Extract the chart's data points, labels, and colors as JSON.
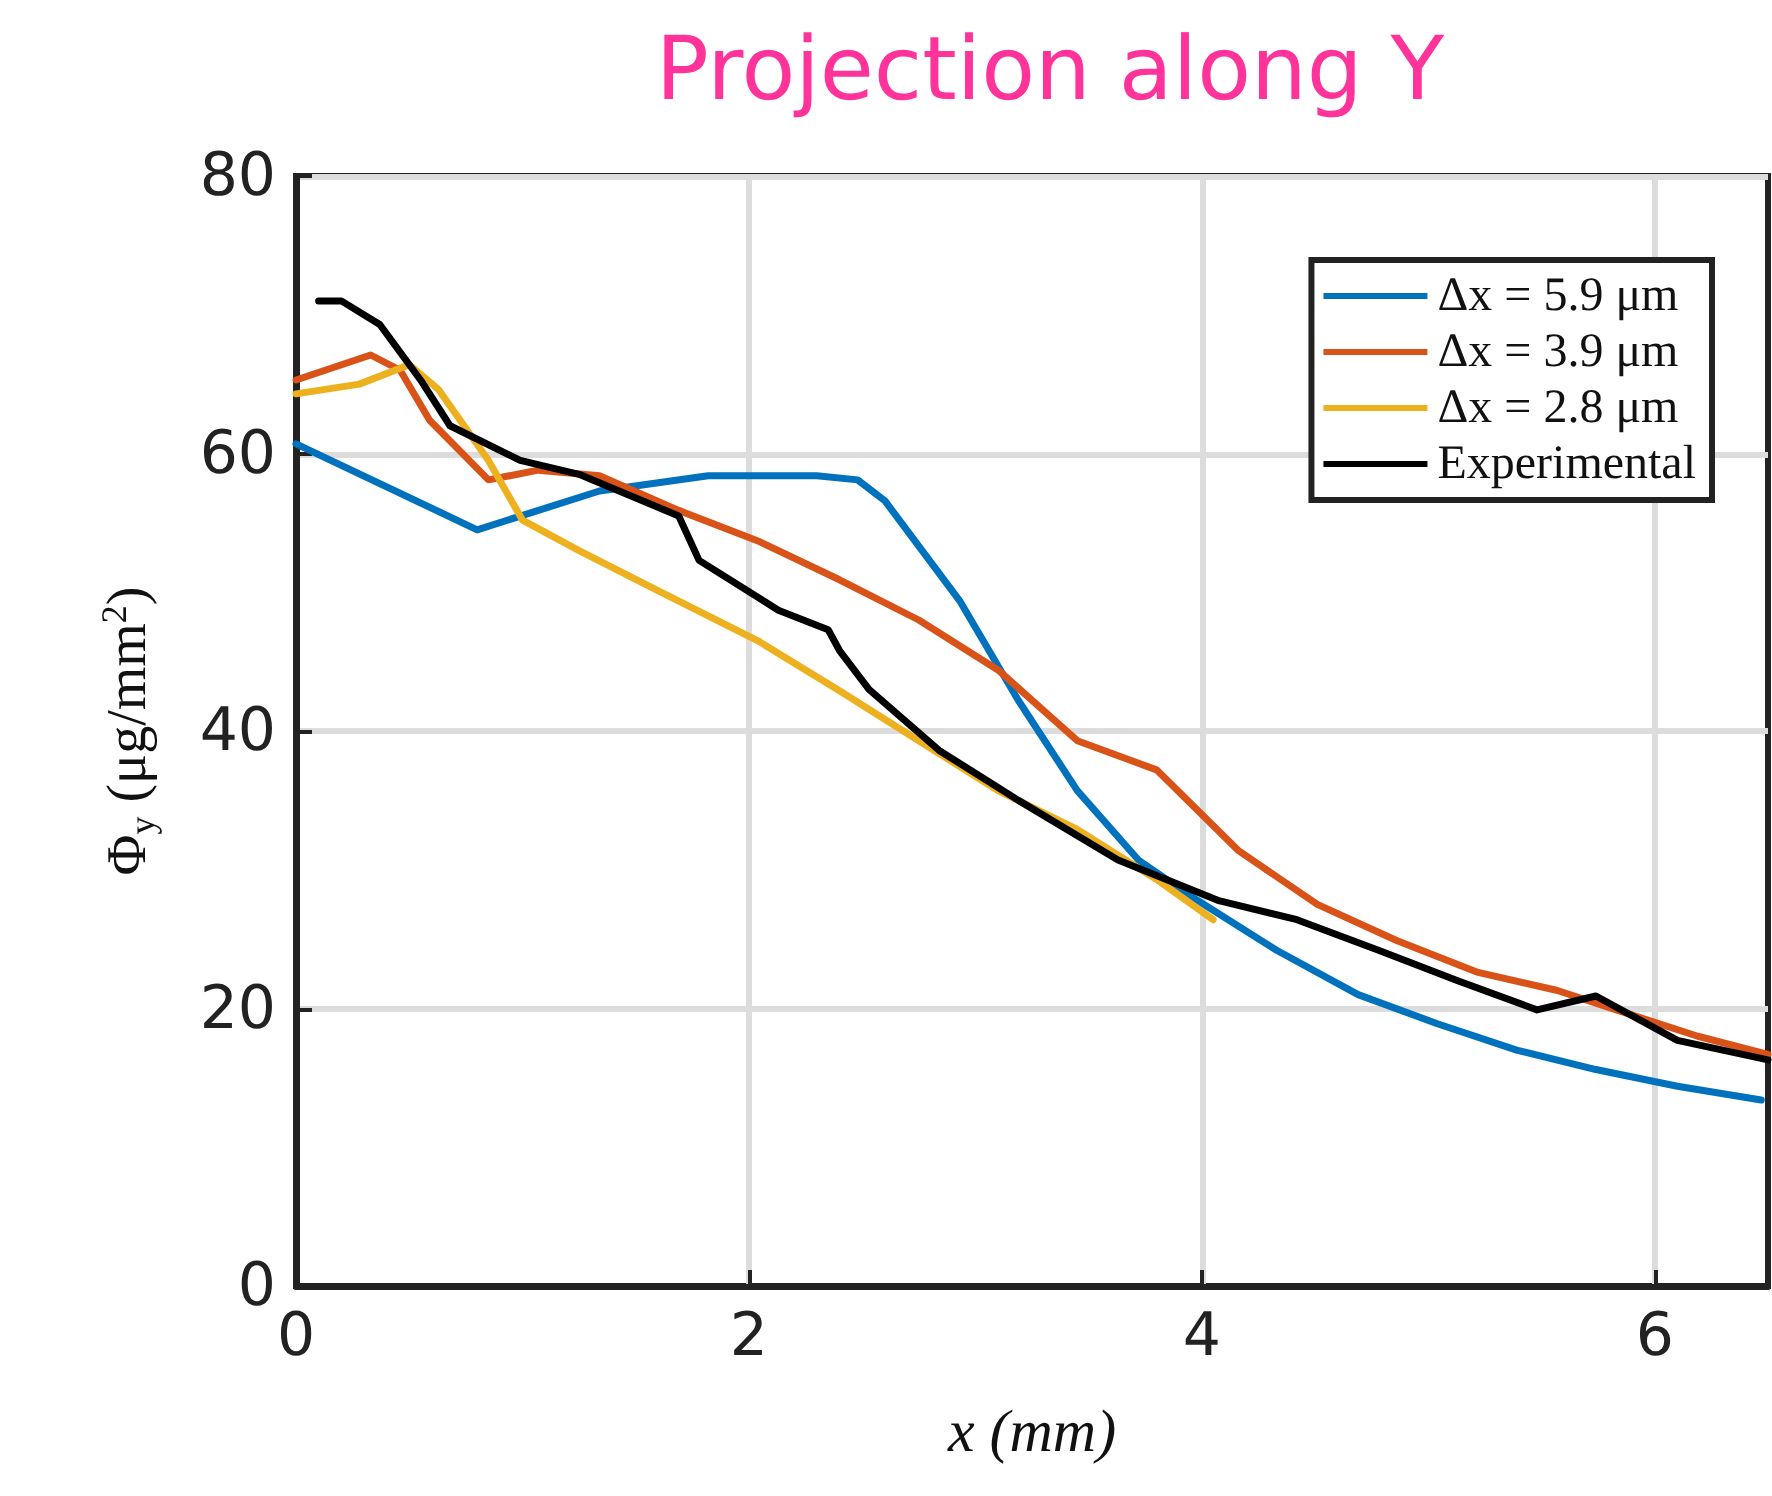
{
  "chart_data": {
    "type": "line",
    "title": "Projection along Y",
    "xlabel": "x (mm)",
    "ylabel": "Φ$_{y}$ (μg/mm$^{2}$)",
    "xlim": [
      0,
      6.5
    ],
    "xticks": [
      0,
      2,
      4,
      6
    ],
    "ylim": [
      0,
      80
    ],
    "yticks": [
      0,
      20,
      40,
      60,
      80
    ],
    "grid": true,
    "legend": "top right",
    "marker": "none",
    "line_style": "solid",
    "series": [
      {
        "name": "Δx = 5.9 μm",
        "color": "#0072bd",
        "x": [
          0,
          0.8,
          1.34,
          1.82,
          2.3,
          2.48,
          2.6,
          2.93,
          3.19,
          3.45,
          3.72,
          3.98,
          4.33,
          4.69,
          5.04,
          5.39,
          5.74,
          6.1,
          6.47
        ],
        "values": [
          60.7,
          54.5,
          57.3,
          58.4,
          58.4,
          58.1,
          56.6,
          49.4,
          42.2,
          35.7,
          30.7,
          27.8,
          24.2,
          21.0,
          18.9,
          17.0,
          15.6,
          14.4,
          13.4
        ]
      },
      {
        "name": "Δx = 3.9 μm",
        "color": "#d95319",
        "x": [
          0,
          0.33,
          0.46,
          0.59,
          0.85,
          1.07,
          1.34,
          1.69,
          2.04,
          2.4,
          2.75,
          3.1,
          3.45,
          3.8,
          4.16,
          4.51,
          4.86,
          5.22,
          5.57,
          5.83,
          6.19,
          6.5
        ],
        "values": [
          65.3,
          67.1,
          66,
          62.4,
          58.1,
          58.8,
          58.4,
          55.9,
          53.7,
          50.9,
          48,
          44.4,
          39.3,
          37.2,
          31.4,
          27.5,
          24.9,
          22.6,
          21.3,
          19.9,
          18,
          16.7
        ]
      },
      {
        "name": "Δx = 2.8 μm",
        "color": "#edb120",
        "x": [
          0,
          0.28,
          0.5,
          0.63,
          0.85,
          1.0,
          1.25,
          1.6,
          2.04,
          2.4,
          2.75,
          3.1,
          3.45,
          3.8,
          4.05
        ],
        "values": [
          64.3,
          65,
          66.4,
          64.6,
          59.5,
          55.2,
          53,
          50.1,
          46.5,
          42.9,
          39.3,
          35.7,
          32.9,
          29.3,
          26.4
        ]
      },
      {
        "name": "Experimental",
        "color": "#000000",
        "x": [
          0.1,
          0.2,
          0.37,
          0.55,
          0.68,
          0.99,
          1.25,
          1.69,
          1.78,
          2.13,
          2.35,
          2.4,
          2.53,
          2.84,
          3.19,
          3.63,
          4.07,
          4.42,
          4.78,
          5.13,
          5.48,
          5.74,
          6.1,
          6.5
        ],
        "values": [
          71,
          71,
          69.3,
          65.3,
          62,
          59.5,
          58.5,
          55.5,
          52.3,
          48.7,
          47.3,
          45.8,
          43,
          38.6,
          35,
          30.7,
          27.8,
          26.4,
          24.2,
          22,
          19.9,
          20.9,
          17.7,
          16.3
        ]
      }
    ]
  }
}
